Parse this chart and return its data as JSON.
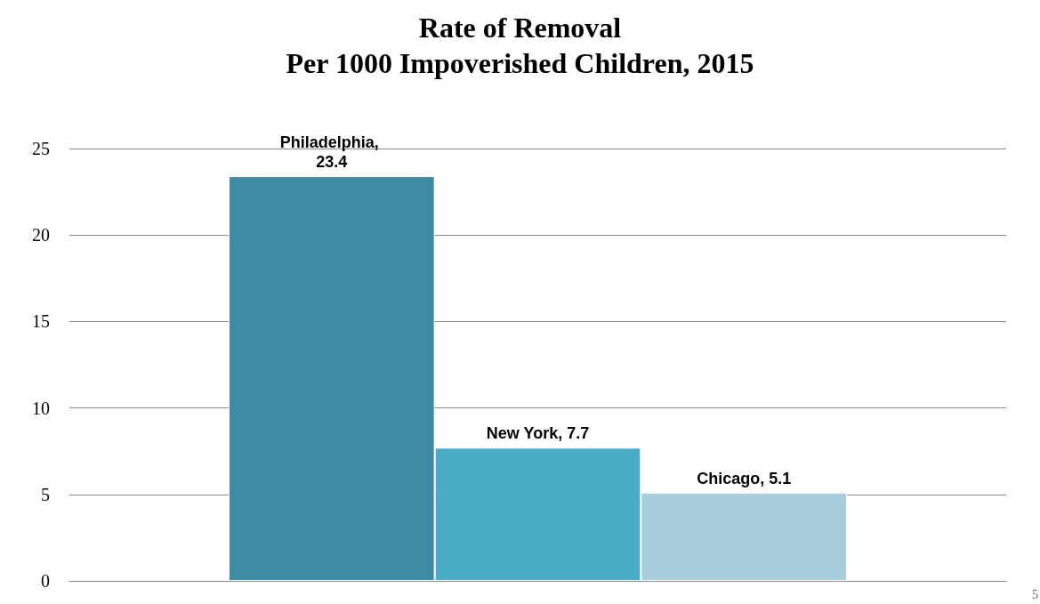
{
  "chart_data": {
    "type": "bar",
    "title": "Rate of Removal",
    "subtitle": "Per 1000 Impoverished Children, 2015",
    "categories": [
      null
    ],
    "series": [
      {
        "color": "#3d8ca4",
        "values": [
          23.4
        ],
        "value_labels": [
          "Philadelphia, 23.4"
        ]
      },
      {
        "color": "#4aabc6",
        "values": [
          7.7
        ],
        "value_labels": [
          "New York, 7.7"
        ]
      },
      {
        "color": "#a8cedb",
        "values": [
          5.1
        ],
        "value_labels": [
          "Chicago, 5.1"
        ]
      }
    ],
    "ylim": [
      0,
      25
    ],
    "yticks": [
      0,
      5,
      10,
      15,
      20,
      25
    ],
    "grid": "y",
    "annotations": [
      "5"
    ]
  }
}
